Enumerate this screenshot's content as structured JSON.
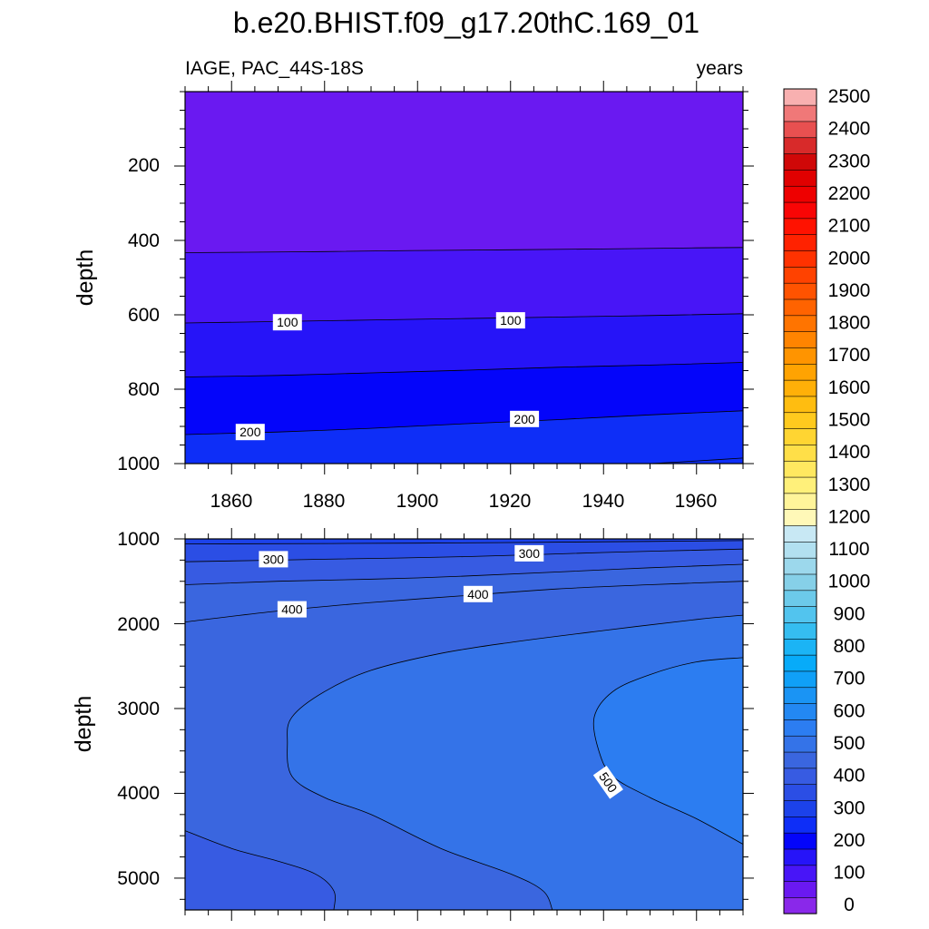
{
  "title": "b.e20.BHIST.f09_g17.20thC.169_01",
  "left_subtitle": "IAGE, PAC_44S-18S",
  "right_subtitle": "years",
  "chart_data": [
    {
      "type": "heatmap",
      "panel": "upper",
      "ylabel": "depth",
      "x_ticks": [
        "1860",
        "1880",
        "1900",
        "1920",
        "1940",
        "1960"
      ],
      "y_ticks": [
        "200",
        "400",
        "600",
        "800",
        "1000"
      ],
      "xlim": [
        1850,
        1970
      ],
      "ylim": [
        0,
        1000
      ],
      "y_inverted": true,
      "contour_labels": [
        {
          "text": "100",
          "x": 1872,
          "y": 620
        },
        {
          "text": "100",
          "x": 1920,
          "y": 615
        },
        {
          "text": "200",
          "x": 1864,
          "y": 915
        },
        {
          "text": "200",
          "x": 1923,
          "y": 880
        }
      ],
      "contour_lines": [
        {
          "level": 50,
          "points": [
            [
              1850,
              433
            ],
            [
              1860,
              432
            ],
            [
              1880,
              430
            ],
            [
              1900,
              427
            ],
            [
              1920,
              425
            ],
            [
              1940,
              423
            ],
            [
              1960,
              420
            ],
            [
              1970,
              419
            ]
          ]
        },
        {
          "level": 100,
          "points": [
            [
              1850,
              622
            ],
            [
              1870,
              618
            ],
            [
              1900,
              612
            ],
            [
              1930,
              606
            ],
            [
              1950,
              602
            ],
            [
              1970,
              597
            ]
          ]
        },
        {
          "level": 150,
          "points": [
            [
              1850,
              767
            ],
            [
              1870,
              763
            ],
            [
              1890,
              756
            ],
            [
              1910,
              749
            ],
            [
              1930,
              741
            ],
            [
              1950,
              735
            ],
            [
              1970,
              728
            ]
          ]
        },
        {
          "level": 200,
          "points": [
            [
              1850,
              922
            ],
            [
              1870,
              915
            ],
            [
              1890,
              905
            ],
            [
              1910,
              893
            ],
            [
              1930,
              882
            ],
            [
              1950,
              869
            ],
            [
              1970,
              858
            ]
          ]
        },
        {
          "level": 250,
          "points": [
            [
              1950,
              1000
            ],
            [
              1960,
              993
            ],
            [
              1970,
              985
            ]
          ]
        }
      ],
      "bands": [
        {
          "min": 0,
          "max": 50,
          "color": "#6a19f1",
          "upper": [
            [
              1850,
              0
            ],
            [
              1970,
              0
            ]
          ],
          "lower": [
            [
              1850,
              433
            ],
            [
              1860,
              432
            ],
            [
              1880,
              430
            ],
            [
              1900,
              427
            ],
            [
              1920,
              425
            ],
            [
              1940,
              423
            ],
            [
              1960,
              420
            ],
            [
              1970,
              419
            ]
          ]
        },
        {
          "min": 50,
          "max": 100,
          "color": "#4815f7",
          "upper": [
            [
              1850,
              433
            ],
            [
              1860,
              432
            ],
            [
              1880,
              430
            ],
            [
              1900,
              427
            ],
            [
              1920,
              425
            ],
            [
              1940,
              423
            ],
            [
              1960,
              420
            ],
            [
              1970,
              419
            ]
          ],
          "lower": [
            [
              1850,
              622
            ],
            [
              1870,
              618
            ],
            [
              1900,
              612
            ],
            [
              1930,
              606
            ],
            [
              1950,
              602
            ],
            [
              1970,
              597
            ]
          ]
        },
        {
          "min": 100,
          "max": 150,
          "color": "#2614f8",
          "upper": [
            [
              1850,
              622
            ],
            [
              1870,
              618
            ],
            [
              1900,
              612
            ],
            [
              1930,
              606
            ],
            [
              1950,
              602
            ],
            [
              1970,
              597
            ]
          ],
          "lower": [
            [
              1850,
              767
            ],
            [
              1870,
              763
            ],
            [
              1890,
              756
            ],
            [
              1910,
              749
            ],
            [
              1930,
              741
            ],
            [
              1950,
              735
            ],
            [
              1970,
              728
            ]
          ]
        },
        {
          "min": 150,
          "max": 200,
          "color": "#0405fa",
          "upper": [
            [
              1850,
              767
            ],
            [
              1870,
              763
            ],
            [
              1890,
              756
            ],
            [
              1910,
              749
            ],
            [
              1930,
              741
            ],
            [
              1950,
              735
            ],
            [
              1970,
              728
            ]
          ],
          "lower": [
            [
              1850,
              922
            ],
            [
              1870,
              915
            ],
            [
              1890,
              905
            ],
            [
              1910,
              893
            ],
            [
              1930,
              882
            ],
            [
              1950,
              869
            ],
            [
              1970,
              858
            ]
          ]
        },
        {
          "min": 200,
          "max": 250,
          "color": "#0e2ef7",
          "upper": [
            [
              1850,
              922
            ],
            [
              1870,
              915
            ],
            [
              1890,
              905
            ],
            [
              1910,
              893
            ],
            [
              1930,
              882
            ],
            [
              1950,
              869
            ],
            [
              1970,
              858
            ]
          ],
          "lower": [
            [
              1850,
              1000
            ],
            [
              1970,
              1000
            ]
          ]
        }
      ]
    },
    {
      "type": "heatmap",
      "panel": "lower",
      "ylabel": "depth",
      "y_ticks": [
        "1000",
        "2000",
        "3000",
        "4000",
        "5000"
      ],
      "xlim": [
        1850,
        1970
      ],
      "ylim": [
        1000,
        5375
      ],
      "y_inverted": true,
      "contour_labels": [
        {
          "text": "300",
          "x": 1869,
          "y": 1240
        },
        {
          "text": "300",
          "x": 1924,
          "y": 1170
        },
        {
          "text": "400",
          "x": 1873,
          "y": 1830
        },
        {
          "text": "400",
          "x": 1913,
          "y": 1650
        },
        {
          "text": "500",
          "x": 1941,
          "y": 3870
        }
      ],
      "contour_lines": [
        {
          "level": 250,
          "points": [
            [
              1850,
              1060
            ],
            [
              1900,
              1050
            ],
            [
              1950,
              1030
            ],
            [
              1970,
              1020
            ]
          ]
        },
        {
          "level": 300,
          "points": [
            [
              1850,
              1270
            ],
            [
              1880,
              1240
            ],
            [
              1910,
              1210
            ],
            [
              1940,
              1160
            ],
            [
              1970,
              1120
            ]
          ]
        },
        {
          "level": 350,
          "points": [
            [
              1850,
              1540
            ],
            [
              1870,
              1500
            ],
            [
              1900,
              1460
            ],
            [
              1930,
              1390
            ],
            [
              1950,
              1340
            ],
            [
              1970,
              1300
            ]
          ]
        },
        {
          "level": 400,
          "points": [
            [
              1850,
              1980
            ],
            [
              1870,
              1850
            ],
            [
              1890,
              1750
            ],
            [
              1910,
              1670
            ],
            [
              1930,
              1590
            ],
            [
              1950,
              1540
            ],
            [
              1970,
              1500
            ]
          ]
        },
        {
          "level": 450,
          "points": [
            [
              1882,
              5375
            ],
            [
              1882,
              5150
            ],
            [
              1878,
              4950
            ],
            [
              1870,
              4800
            ],
            [
              1860,
              4650
            ],
            [
              1850,
              4440
            ]
          ]
        },
        {
          "level": 450,
          "points": [
            [
              1929,
              5375
            ],
            [
              1927,
              5150
            ],
            [
              1920,
              4950
            ],
            [
              1905,
              4650
            ],
            [
              1890,
              4250
            ],
            [
              1880,
              4050
            ],
            [
              1873,
              3800
            ],
            [
              1872,
              3400
            ],
            [
              1873,
              3100
            ],
            [
              1880,
              2800
            ],
            [
              1890,
              2550
            ],
            [
              1905,
              2350
            ],
            [
              1920,
              2220
            ],
            [
              1940,
              2080
            ],
            [
              1960,
              1950
            ],
            [
              1970,
              1900
            ]
          ]
        },
        {
          "level": 500,
          "points": [
            [
              1970,
              2400
            ],
            [
              1960,
              2450
            ],
            [
              1950,
              2600
            ],
            [
              1942,
              2800
            ],
            [
              1938,
              3100
            ],
            [
              1939,
              3500
            ],
            [
              1942,
              3800
            ],
            [
              1950,
              4050
            ],
            [
              1960,
              4300
            ],
            [
              1970,
              4600
            ]
          ]
        }
      ],
      "bands": [
        {
          "min": 250,
          "max": 300,
          "color": "#1c42ea",
          "region": "top"
        },
        {
          "min": 300,
          "max": 350,
          "color": "#2b4ee5",
          "region": "upper"
        },
        {
          "min": 350,
          "max": 400,
          "color": "#375be2",
          "region": "middle"
        },
        {
          "min": 400,
          "max": 450,
          "color": "#3a66df",
          "region": "outer"
        },
        {
          "min": 450,
          "max": 500,
          "color": "#3473e8",
          "region": "inner"
        },
        {
          "min": 500,
          "max": 550,
          "color": "#2c7df1",
          "region": "core"
        }
      ]
    }
  ],
  "colorbar": {
    "labels": [
      "2500",
      "2400",
      "2300",
      "2200",
      "2100",
      "2000",
      "1900",
      "1800",
      "1700",
      "1600",
      "1500",
      "1400",
      "1300",
      "1200",
      "1100",
      "1000",
      "900",
      "800",
      "700",
      "600",
      "500",
      "400",
      "300",
      "200",
      "100",
      "0"
    ],
    "colors": [
      "#8a28ea",
      "#6a19f1",
      "#4815f7",
      "#2614f8",
      "#0405fa",
      "#0e2ef7",
      "#1c42ea",
      "#2b4ee5",
      "#375be2",
      "#3a66df",
      "#3473e8",
      "#2c7df1",
      "#2388f2",
      "#1a94f4",
      "#10a0f7",
      "#07abf9",
      "#1bb4f5",
      "#35bdf0",
      "#52c4ee",
      "#6ccaea",
      "#86d0e8",
      "#9cd8ec",
      "#b2e0f0",
      "#c8e8f4",
      "#fff8b8",
      "#fff49a",
      "#fff07a",
      "#ffe860",
      "#ffdf48",
      "#ffd532",
      "#ffca1e",
      "#ffbd10",
      "#ffb008",
      "#ffa302",
      "#ff9400",
      "#ff8400",
      "#ff7400",
      "#ff6300",
      "#ff5300",
      "#ff4200",
      "#ff3200",
      "#ff2200",
      "#ff1200",
      "#f90505",
      "#ee0000",
      "#e00000",
      "#d00808",
      "#d82a2a",
      "#e85050",
      "#f07878",
      "#f8b0b0"
    ]
  }
}
